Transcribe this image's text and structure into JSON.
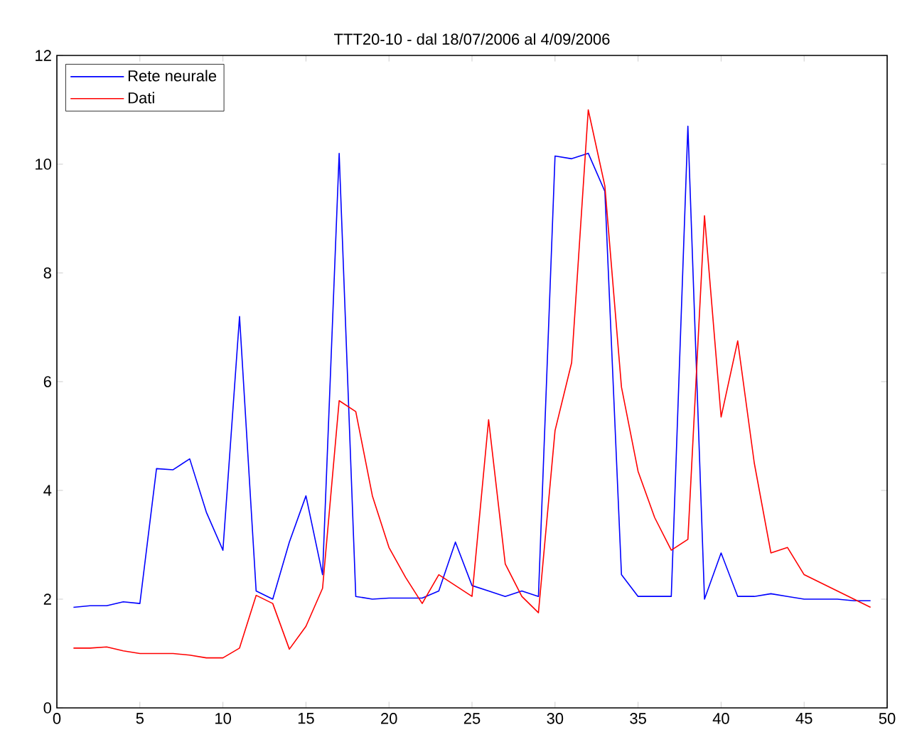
{
  "chart_data": {
    "type": "line",
    "title": "TTT20-10 - dal 18/07/2006 al 4/09/2006",
    "x": [
      1,
      2,
      3,
      4,
      5,
      6,
      7,
      8,
      9,
      10,
      11,
      12,
      13,
      14,
      15,
      16,
      17,
      18,
      19,
      20,
      21,
      22,
      23,
      24,
      25,
      26,
      27,
      28,
      29,
      30,
      31,
      32,
      33,
      34,
      35,
      36,
      37,
      38,
      39,
      40,
      41,
      42,
      43,
      44,
      45,
      46,
      47,
      48,
      49
    ],
    "series": [
      {
        "name": "Rete neurale",
        "color": "#0000ff",
        "values": [
          1.85,
          1.88,
          1.88,
          1.95,
          1.92,
          4.4,
          4.38,
          4.58,
          3.6,
          2.9,
          7.2,
          2.15,
          2.0,
          3.05,
          3.9,
          2.45,
          10.2,
          2.05,
          2.0,
          2.02,
          2.02,
          2.02,
          2.15,
          3.05,
          2.25,
          2.15,
          2.05,
          2.15,
          2.05,
          10.15,
          10.1,
          10.2,
          9.5,
          2.45,
          2.05,
          2.05,
          2.05,
          10.7,
          2.0,
          2.85,
          2.05,
          2.05,
          2.1,
          2.05,
          2.0,
          2.0,
          2.0,
          1.97,
          1.97
        ]
      },
      {
        "name": "Dati",
        "color": "#ff0000",
        "values": [
          1.1,
          1.1,
          1.12,
          1.05,
          1.0,
          1.0,
          1.0,
          0.97,
          0.92,
          0.92,
          1.1,
          2.07,
          1.92,
          1.08,
          1.5,
          2.2,
          5.65,
          5.45,
          3.9,
          2.95,
          2.4,
          1.92,
          2.45,
          2.25,
          2.05,
          5.3,
          2.65,
          2.05,
          1.75,
          5.1,
          6.35,
          11.0,
          9.6,
          5.9,
          4.35,
          3.5,
          2.9,
          3.1,
          9.05,
          5.35,
          6.75,
          4.5,
          2.85,
          2.95,
          2.45,
          2.3,
          2.15,
          2.0,
          1.85
        ]
      }
    ],
    "xlim": [
      0,
      50
    ],
    "xticks": [
      0,
      5,
      10,
      15,
      20,
      25,
      30,
      35,
      40,
      45,
      50
    ],
    "ylim": [
      0,
      12
    ],
    "yticks": [
      0,
      2,
      4,
      6,
      8,
      10,
      12
    ],
    "legend": "top left",
    "grid": false,
    "line_style": "solid",
    "marker": "none"
  }
}
